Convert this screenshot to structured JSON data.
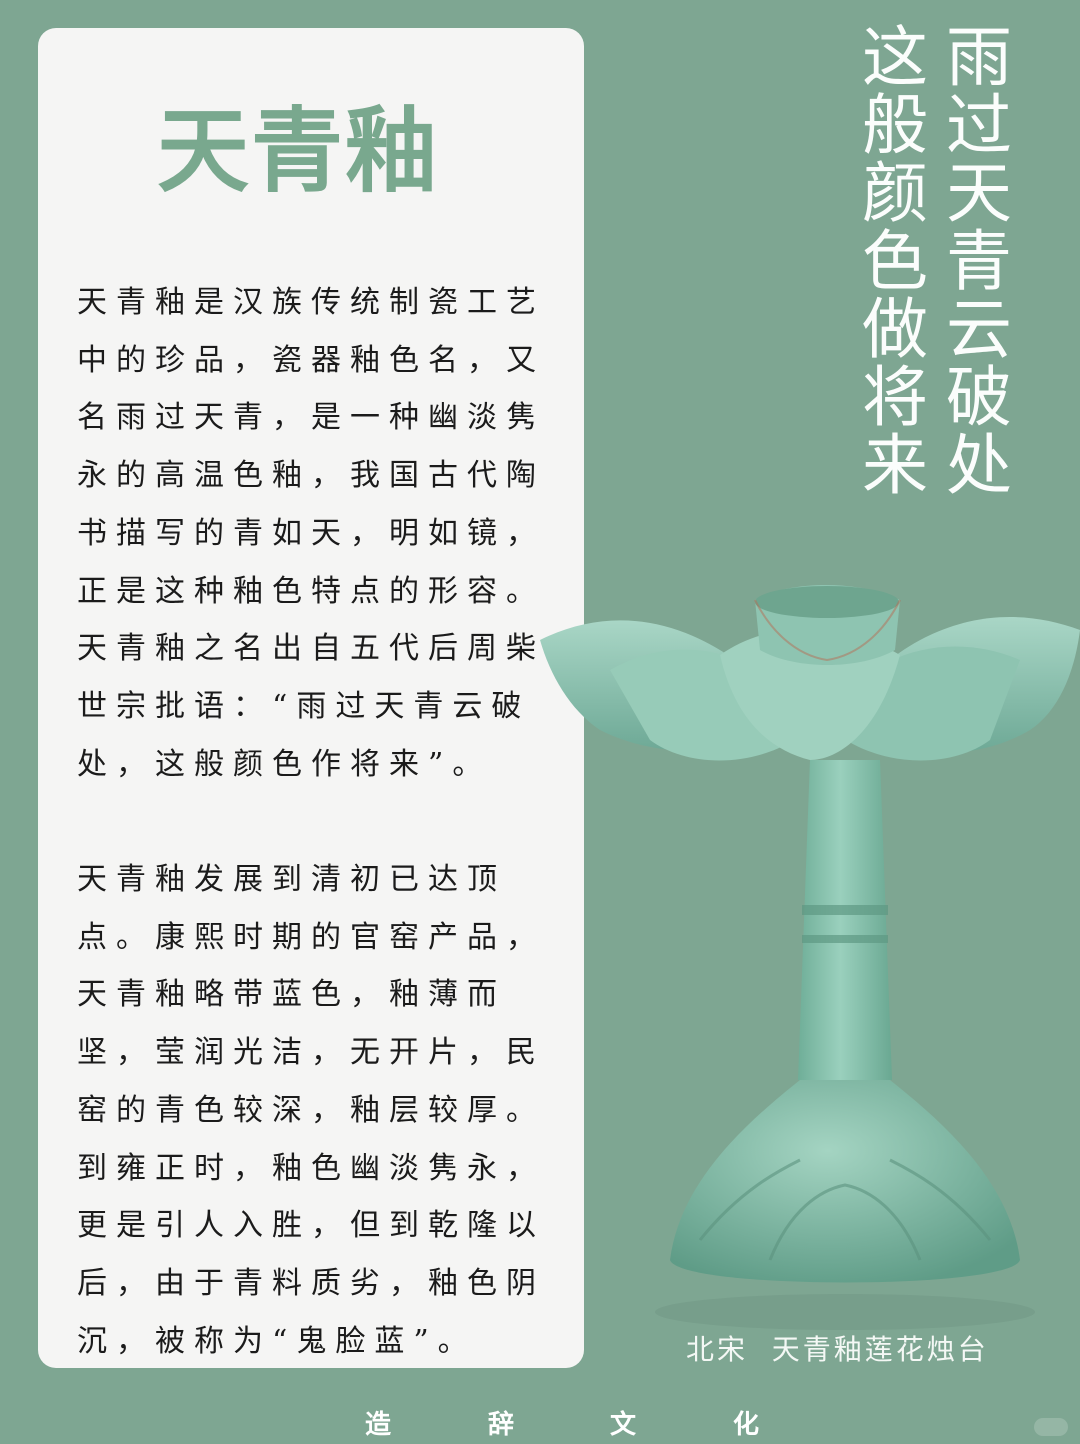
{
  "card": {
    "title": "天青釉",
    "paragraph_1": "天青釉是汉族传统制瓷工艺\n中的珍品，瓷器釉色名，又\n名雨过天青，是一种幽淡隽\n永的高温色釉，我国古代陶\n书描写的青如天，明如镜，\n正是这种釉色特点的形容。\n天青釉之名出自五代后周柴\n世宗批语：“雨过天青云破\n处，这般颜色作将来”。",
    "paragraph_2": "天青釉发展到清初已达顶\n点。康熙时期的官窑产品，\n天青釉略带蓝色，釉薄而\n坚，莹润光洁，无开片，民\n窑的青色较深，釉层较厚。\n到雍正时，釉色幽淡隽永，\n更是引人入胜，但到乾隆以\n后，由于青料质劣，釉色阴\n沉，被称为“鬼脸蓝”。"
  },
  "poem": {
    "line_1": "雨过天青云破处",
    "line_2": "这般颜色做将来"
  },
  "caption": "北宋  天青釉莲花烛台",
  "footer": {
    "chars": [
      "造",
      "辞",
      "文",
      "化"
    ]
  },
  "colors": {
    "background": "#7ea692",
    "card": "#f5f5f4",
    "title": "#79a88e",
    "glaze": "#8cc3b0"
  }
}
